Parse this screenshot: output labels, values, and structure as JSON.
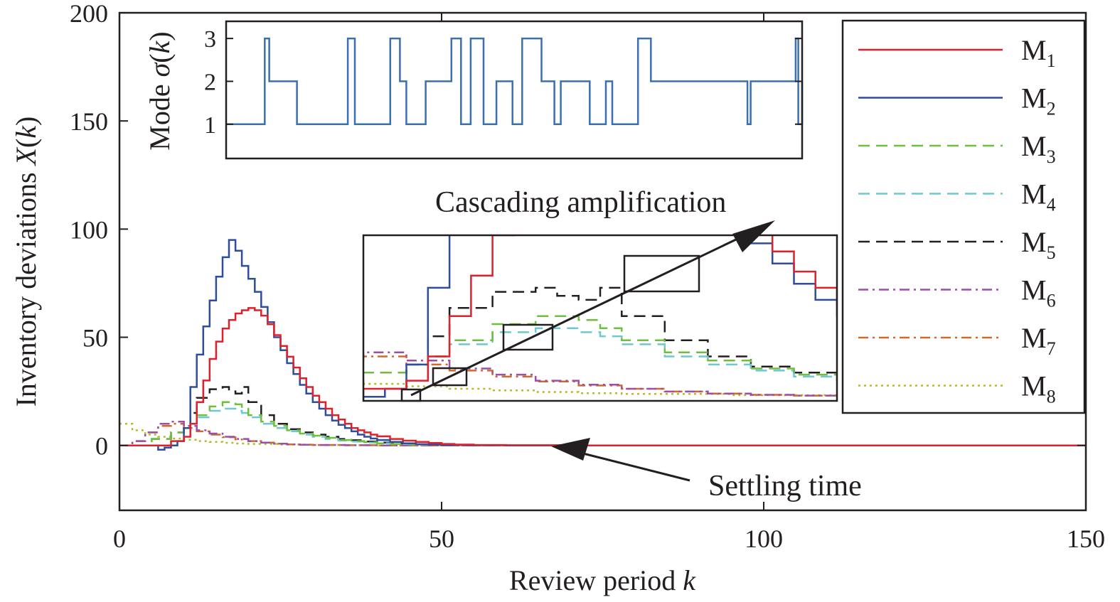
{
  "chart_data": [
    {
      "type": "line",
      "step": true,
      "xlabel": "Review period k",
      "ylabel": "Inventory deviations X(k)",
      "xlim": [
        0,
        150
      ],
      "ylim": [
        -30,
        200
      ],
      "xticks": [
        0,
        50,
        100,
        150
      ],
      "xtick_labels": [
        "0",
        "50",
        "100",
        "150"
      ],
      "yticks": [
        0,
        50,
        100,
        150,
        200
      ],
      "ytick_labels": [
        "0",
        "50",
        "100",
        "150",
        "200"
      ],
      "grid": false,
      "legend_position": "right",
      "annotations": [
        "Cascading amplification",
        "Settling time"
      ],
      "series": [
        {
          "name": "M1",
          "sub": "1",
          "color": "#e0202a",
          "dash": "solid",
          "x": [
            0,
            3,
            6,
            8,
            10,
            11,
            12,
            13,
            14,
            15,
            16,
            17,
            18,
            19,
            20,
            21,
            22,
            23,
            24,
            25,
            26,
            27,
            28,
            29,
            30,
            31,
            32,
            33,
            34,
            35,
            36,
            37,
            38,
            39,
            40,
            42,
            44,
            46,
            48,
            50,
            52,
            55,
            60,
            70,
            80,
            100,
            150
          ],
          "y": [
            0,
            0,
            0,
            2,
            4,
            10,
            20,
            30,
            40,
            48,
            54,
            58,
            61,
            62.5,
            63.5,
            62.5,
            60,
            56,
            51,
            46,
            41,
            36,
            31,
            27,
            23,
            20,
            17,
            14,
            12,
            10,
            8,
            7,
            6,
            5,
            4.2,
            3,
            2.2,
            1.6,
            1.1,
            0.7,
            0.4,
            0.2,
            0.1,
            0,
            0,
            0,
            0
          ]
        },
        {
          "name": "M2",
          "sub": "2",
          "color": "#2e4d9e",
          "dash": "solid",
          "x": [
            0,
            3,
            6,
            7,
            8,
            9,
            10,
            11,
            12,
            13,
            14,
            15,
            16,
            17,
            18,
            19,
            20,
            21,
            22,
            23,
            24,
            25,
            26,
            27,
            28,
            29,
            30,
            31,
            32,
            33,
            34,
            35,
            36,
            37,
            38,
            39,
            40,
            42,
            44,
            46,
            48,
            50,
            55,
            60,
            80,
            150
          ],
          "y": [
            0,
            0,
            -2,
            -1,
            0,
            2,
            8,
            27,
            42,
            55,
            67,
            78,
            87,
            95,
            90,
            83,
            77,
            71,
            64,
            57,
            50,
            44,
            38,
            33,
            28,
            24,
            20,
            17,
            14,
            11.5,
            9.5,
            8,
            6.5,
            5,
            4,
            3.2,
            2.5,
            1.6,
            1,
            0.6,
            0.4,
            0.2,
            0.1,
            0,
            0,
            0
          ]
        },
        {
          "name": "M3",
          "sub": "3",
          "color": "#6fbf3f",
          "dash": "dashed",
          "x": [
            0,
            5,
            8,
            10,
            11,
            12,
            14,
            16,
            18,
            19,
            20,
            22,
            24,
            26,
            28,
            30,
            32,
            34,
            36,
            38,
            40,
            42,
            45,
            50,
            55,
            60,
            150
          ],
          "y": [
            0,
            3,
            6,
            8,
            10,
            14,
            18,
            20,
            19,
            17,
            14,
            11,
            9,
            7,
            5.5,
            4.5,
            3.5,
            2.5,
            2,
            1.5,
            1,
            0.7,
            0.4,
            0.2,
            0.1,
            0,
            0
          ]
        },
        {
          "name": "M4",
          "sub": "4",
          "color": "#6ec8d0",
          "dash": "dashed",
          "x": [
            0,
            5,
            8,
            10,
            11,
            12,
            14,
            16,
            18,
            19,
            20,
            22,
            24,
            26,
            28,
            30,
            32,
            34,
            36,
            38,
            40,
            42,
            45,
            50,
            55,
            60,
            150
          ],
          "y": [
            0,
            3,
            6,
            8,
            10,
            13,
            16,
            17,
            16,
            15,
            13,
            10,
            8,
            6.5,
            5,
            4,
            3,
            2.3,
            1.8,
            1.3,
            1,
            0.6,
            0.4,
            0.2,
            0.1,
            0,
            0
          ]
        },
        {
          "name": "M5",
          "sub": "5",
          "color": "#231f20",
          "dash": "dashed",
          "x": [
            0,
            5,
            8,
            10,
            11,
            12,
            14,
            16,
            17,
            18,
            19,
            20,
            22,
            24,
            26,
            28,
            30,
            32,
            34,
            36,
            38,
            40,
            42,
            45,
            50,
            55,
            60,
            150
          ],
          "y": [
            0,
            3,
            6,
            8,
            15,
            22,
            26,
            27,
            25,
            24,
            27,
            20,
            14,
            10,
            7.5,
            6,
            5,
            4,
            3,
            2.4,
            1.8,
            1.3,
            0.9,
            0.5,
            0.2,
            0.1,
            0,
            0
          ]
        },
        {
          "name": "M6",
          "sub": "6",
          "color": "#9b4fa8",
          "dash": "dashdot",
          "x": [
            0,
            2,
            4,
            6,
            8,
            10,
            12,
            14,
            16,
            18,
            20,
            22,
            24,
            26,
            28,
            30,
            35,
            40,
            45,
            50,
            60,
            150
          ],
          "y": [
            0,
            2,
            6,
            10,
            11,
            9,
            7,
            5.5,
            4,
            3,
            2,
            1.3,
            0.8,
            0.5,
            0.3,
            0.2,
            0.1,
            0,
            0,
            0,
            0,
            0
          ]
        },
        {
          "name": "M7",
          "sub": "7",
          "color": "#d06a2a",
          "dash": "dashdot",
          "x": [
            0,
            2,
            4,
            6,
            8,
            10,
            12,
            14,
            16,
            18,
            20,
            22,
            24,
            26,
            28,
            30,
            35,
            40,
            45,
            50,
            60,
            150
          ],
          "y": [
            0,
            2,
            6,
            9,
            10,
            8,
            6.5,
            5,
            3.8,
            2.8,
            2,
            1.3,
            0.8,
            0.5,
            0.3,
            0.2,
            0.1,
            0,
            0,
            0,
            0,
            0
          ]
        },
        {
          "name": "M8",
          "sub": "8",
          "color": "#b6b92a",
          "dash": "dotted",
          "x": [
            0,
            2,
            4,
            6,
            8,
            10,
            12,
            14,
            16,
            18,
            20,
            25,
            30,
            35,
            40,
            50,
            60,
            150
          ],
          "y": [
            10,
            7,
            5,
            4,
            3.2,
            2.6,
            2,
            1.6,
            1.2,
            0.9,
            0.7,
            0.4,
            0.2,
            0.1,
            0,
            0,
            0,
            0
          ]
        }
      ]
    },
    {
      "type": "line",
      "step": true,
      "ylabel": "Mode σ(k)",
      "yticks": [
        1,
        2,
        3
      ],
      "ytick_labels": [
        "1",
        "2",
        "3"
      ],
      "ylim": [
        0.2,
        3.4
      ],
      "xlim": [
        0,
        89.5
      ],
      "series": [
        {
          "color": "#3a6fb0",
          "x": [
            0,
            6,
            6.7,
            9.5,
            11,
            18.5,
            18.9,
            19.3,
            20,
            25.5,
            27,
            28,
            30,
            31,
            35,
            36.5,
            37,
            38,
            40,
            42,
            44.5,
            45,
            46,
            49,
            51,
            52,
            56.5,
            58,
            59,
            60,
            62.5,
            64,
            66,
            81,
            81.5,
            82.5,
            85.5,
            88.5,
            88.9,
            89.5
          ],
          "y": [
            1,
            3,
            2,
            2,
            1,
            1,
            3,
            3,
            1,
            3,
            2,
            1,
            1,
            2,
            3,
            1,
            1,
            3,
            1,
            2,
            1,
            1,
            3,
            2,
            1,
            2,
            1,
            1,
            2,
            1,
            1,
            3,
            2,
            1,
            2,
            2,
            2,
            3,
            1,
            2
          ]
        }
      ]
    }
  ]
}
